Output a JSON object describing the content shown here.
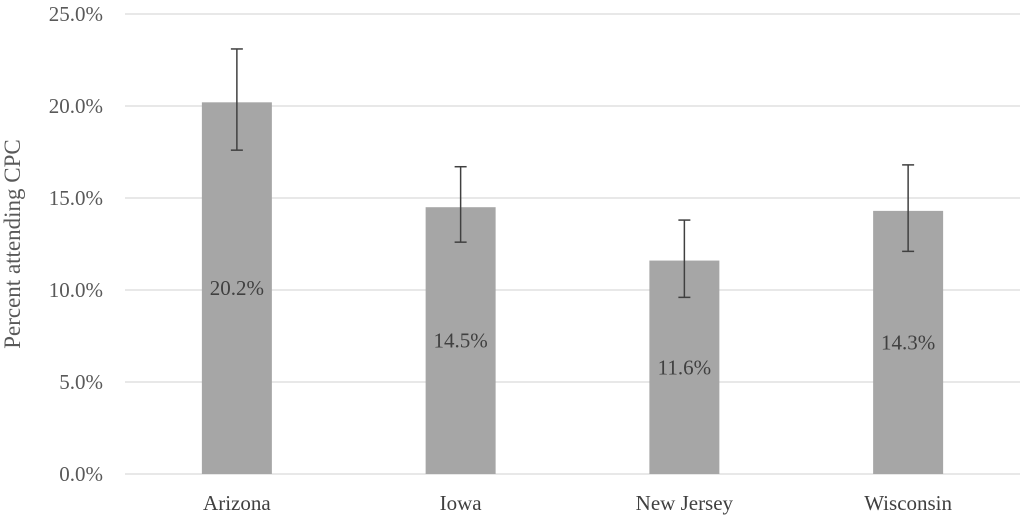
{
  "chart_data": {
    "type": "bar",
    "title": "",
    "xlabel": "",
    "ylabel": "Percent attending CPC",
    "categories": [
      "Arizona",
      "Iowa",
      "New Jersey",
      "Wisconsin"
    ],
    "values": [
      20.2,
      14.5,
      11.6,
      14.3
    ],
    "error_low": [
      17.6,
      12.6,
      9.6,
      12.1
    ],
    "error_high": [
      23.1,
      16.7,
      13.8,
      16.8
    ],
    "data_labels": [
      "20.2%",
      "14.5%",
      "11.6%",
      "14.3%"
    ],
    "ylim": [
      0,
      25
    ],
    "yticks": [
      0,
      5,
      10,
      15,
      20,
      25
    ],
    "ytick_labels": [
      "0.0%",
      "5.0%",
      "10.0%",
      "15.0%",
      "20.0%",
      "25.0%"
    ],
    "grid": true,
    "legend": "none",
    "colors": {
      "bar": "#a6a6a6",
      "grid": "#d9d9d9",
      "error_bar": "#404040"
    }
  }
}
